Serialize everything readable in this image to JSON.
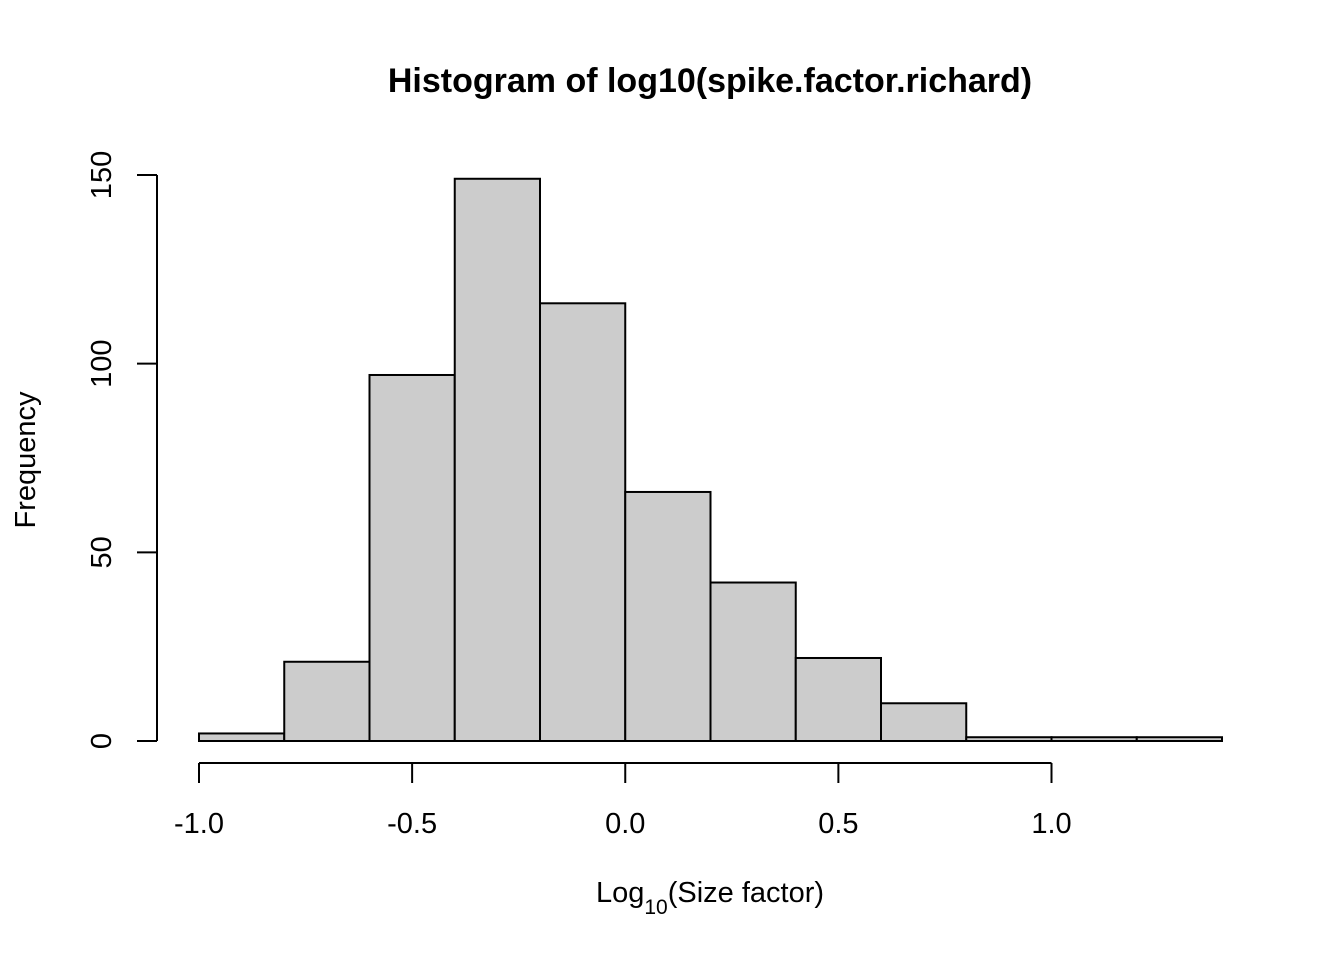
{
  "chart_data": {
    "type": "bar",
    "title": "Histogram of log10(spike.factor.richard)",
    "xlabel_base": "Log",
    "xlabel_sub": "10",
    "xlabel_rest": "(Size factor)",
    "ylabel": "Frequency",
    "bins": [
      {
        "x0": -1.0,
        "x1": -0.8,
        "count": 2
      },
      {
        "x0": -0.8,
        "x1": -0.6,
        "count": 21
      },
      {
        "x0": -0.6,
        "x1": -0.4,
        "count": 97
      },
      {
        "x0": -0.4,
        "x1": -0.2,
        "count": 149
      },
      {
        "x0": -0.2,
        "x1": 0.0,
        "count": 116
      },
      {
        "x0": 0.0,
        "x1": 0.2,
        "count": 66
      },
      {
        "x0": 0.2,
        "x1": 0.4,
        "count": 42
      },
      {
        "x0": 0.4,
        "x1": 0.6,
        "count": 22
      },
      {
        "x0": 0.6,
        "x1": 0.8,
        "count": 10
      },
      {
        "x0": 0.8,
        "x1": 1.0,
        "count": 1
      },
      {
        "x0": 1.0,
        "x1": 1.2,
        "count": 1
      },
      {
        "x0": 1.2,
        "x1": 1.4,
        "count": 1
      }
    ],
    "xticks": [
      -1.0,
      -0.5,
      0.0,
      0.5,
      1.0
    ],
    "xtick_labels": [
      "-1.0",
      "-0.5",
      "0.0",
      "0.5",
      "1.0"
    ],
    "yticks": [
      0,
      50,
      100,
      150
    ],
    "ytick_labels": [
      "0",
      "50",
      "100",
      "150"
    ],
    "xlim": [
      -1.0,
      1.4
    ],
    "ylim": [
      0,
      150
    ],
    "grid": false,
    "bar_color": "#cccccc",
    "edge_color": "#000000"
  }
}
